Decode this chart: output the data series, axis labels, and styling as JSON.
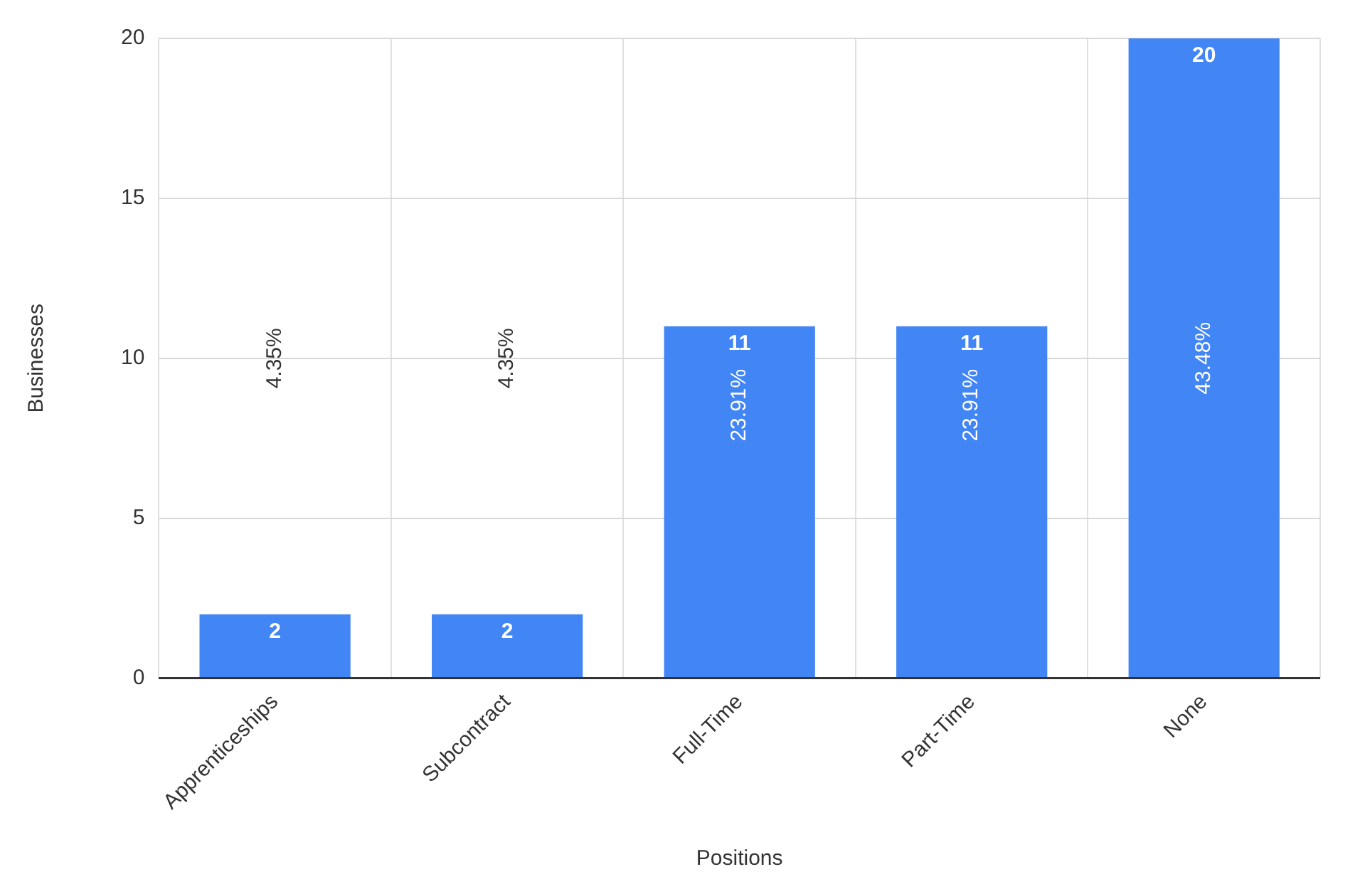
{
  "chart_data": {
    "type": "bar",
    "xlabel": "Positions",
    "ylabel": "Businesses",
    "categories": [
      "Apprenticeships",
      "Subcontract",
      "Full-Time",
      "Part-Time",
      "None"
    ],
    "values": [
      2,
      2,
      11,
      11,
      20
    ],
    "color": "#4285f4",
    "ylim": [
      0,
      20
    ],
    "yticks": [
      0,
      5,
      10,
      15,
      20
    ],
    "grid": true,
    "legend": false,
    "data_labels": true,
    "annotations": [
      "4.35%",
      "4.35%",
      "23.91%",
      "23.91%",
      "43.48%"
    ]
  }
}
